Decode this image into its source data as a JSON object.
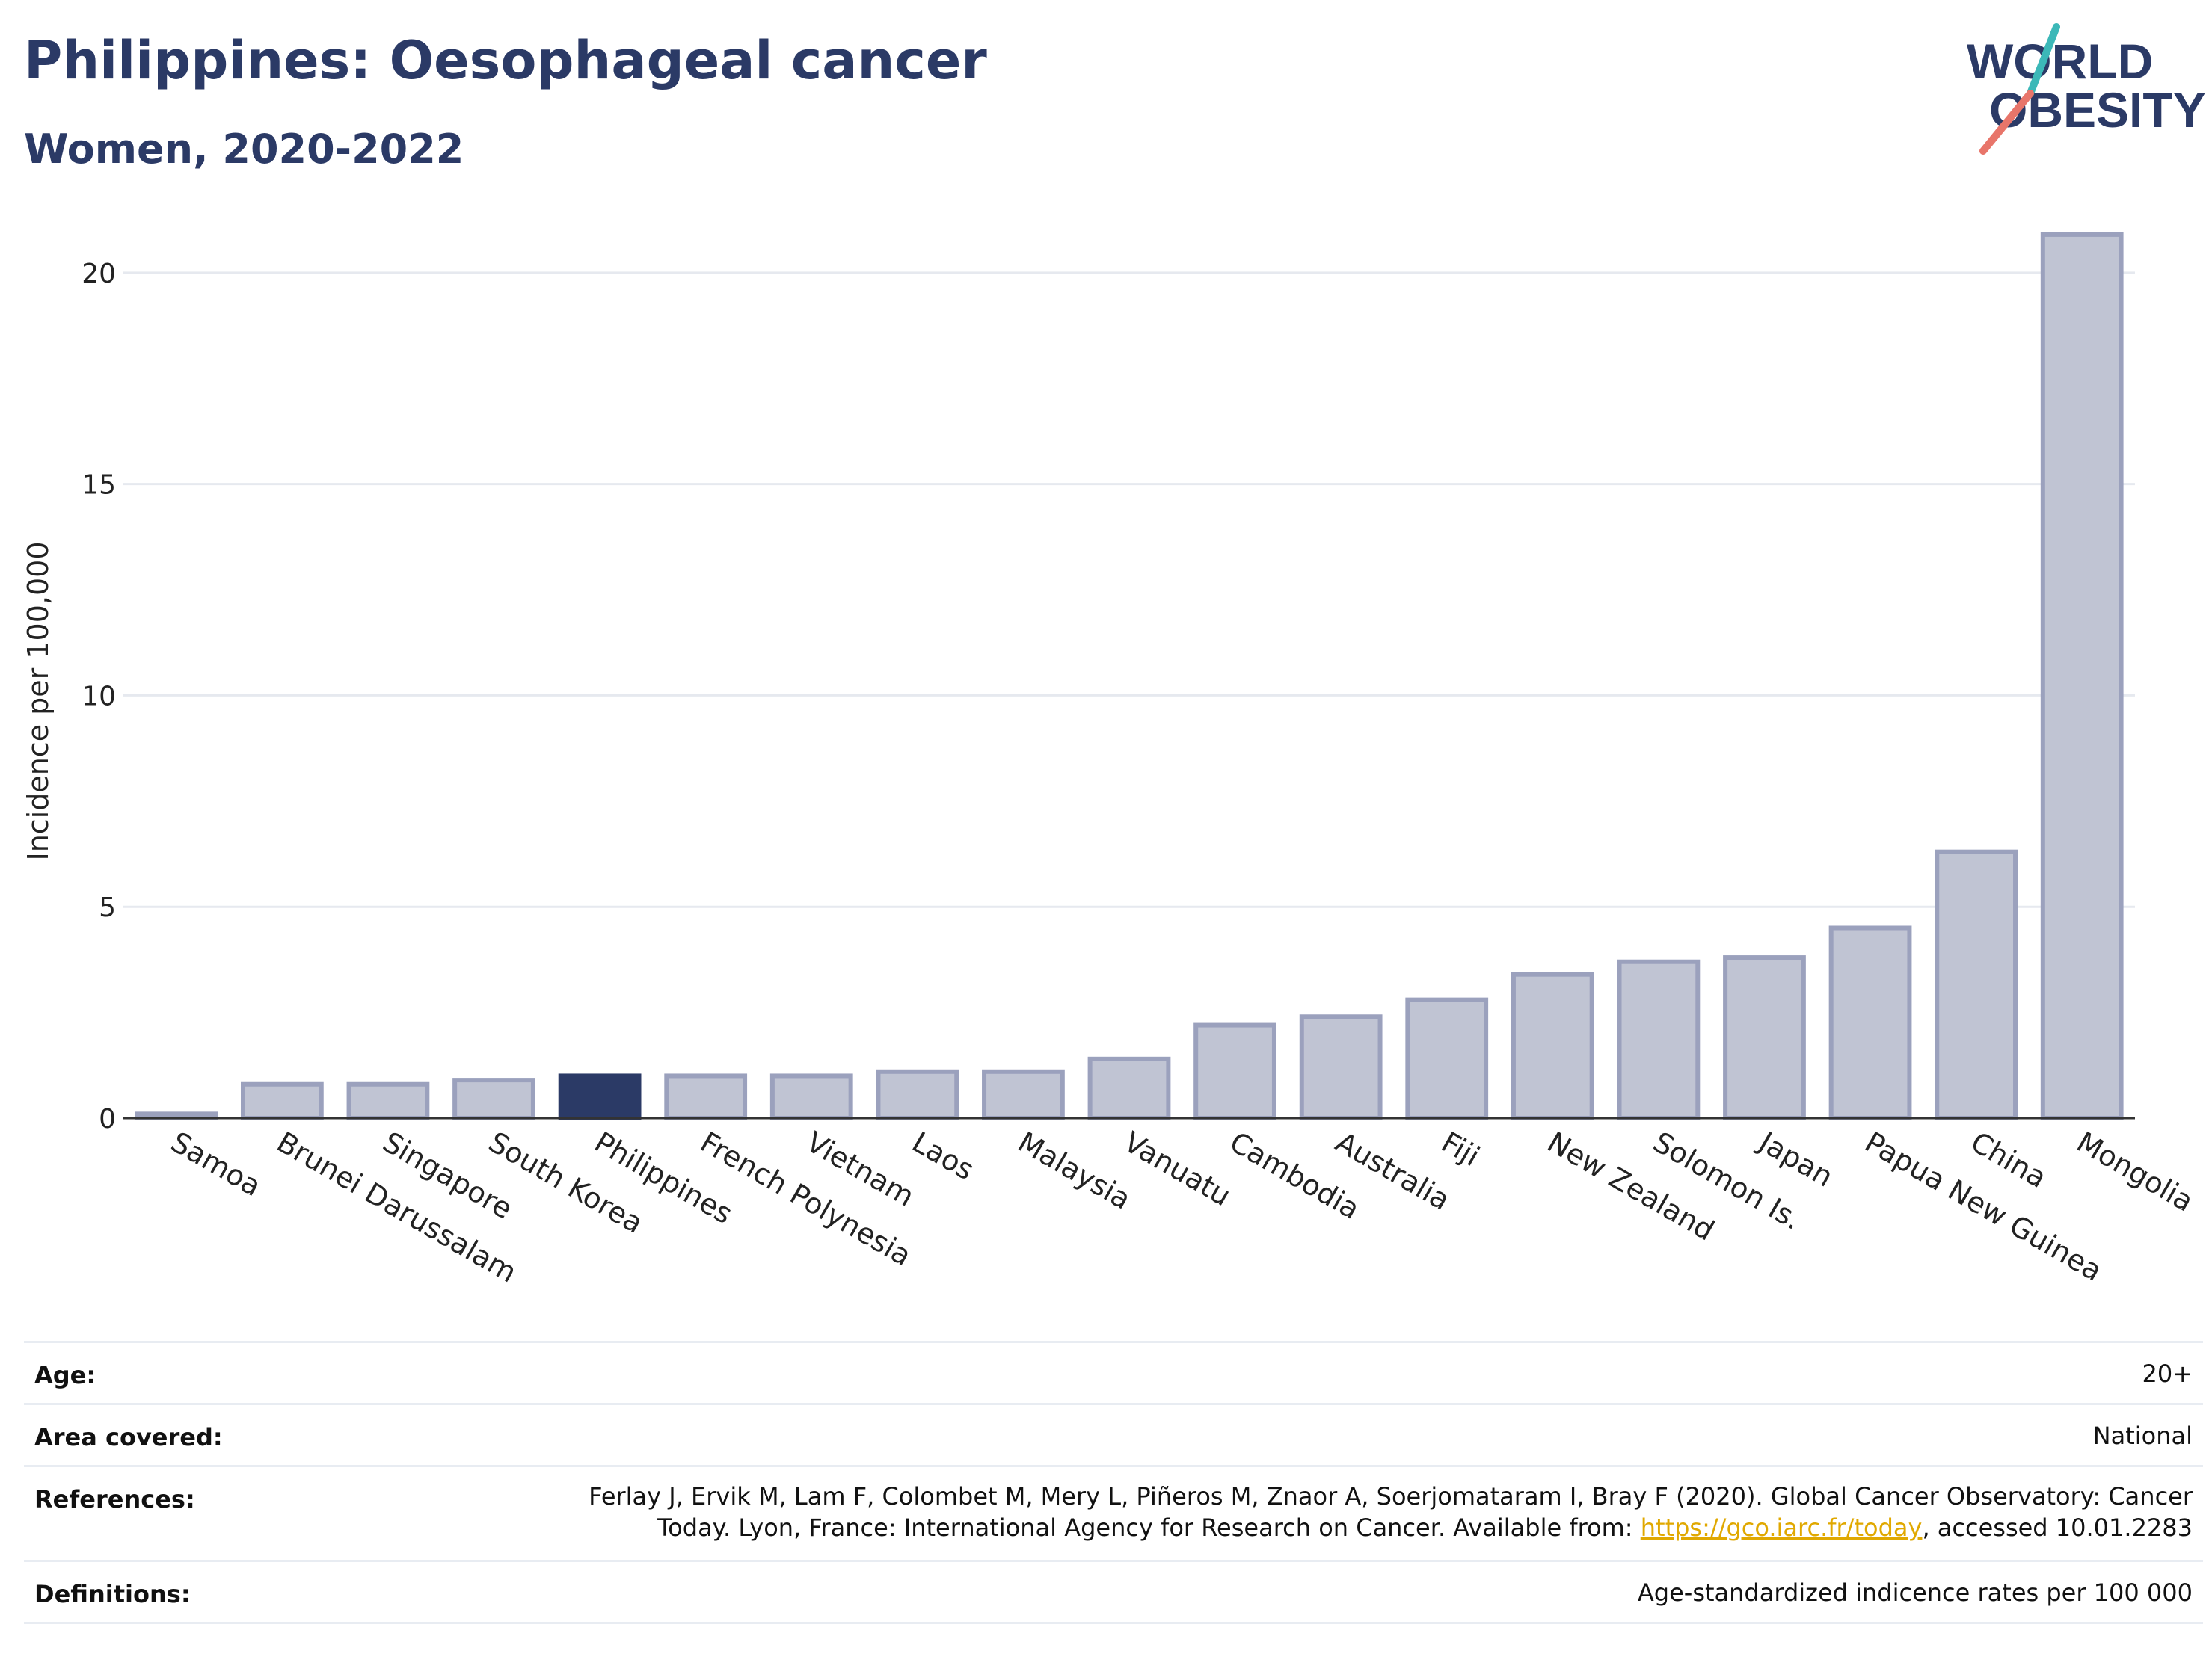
{
  "header": {
    "title": "Philippines: Oesophageal cancer",
    "subtitle": "Women, 2020-2022"
  },
  "logo": {
    "line1": "WORLD",
    "line2": "OBESITY"
  },
  "chart_data": {
    "type": "bar",
    "ylabel": "Incidence per 100,000",
    "xlabel": "",
    "ylim": [
      0,
      21.5
    ],
    "yticks": [
      0,
      5,
      10,
      15,
      20
    ],
    "grid": true,
    "legend": "none",
    "highlight": "Philippines",
    "categories": [
      "Samoa",
      "Brunei Darussalam",
      "Singapore",
      "South Korea",
      "Philippines",
      "French Polynesia",
      "Vietnam",
      "Laos",
      "Malaysia",
      "Vanuatu",
      "Cambodia",
      "Australia",
      "Fiji",
      "New Zealand",
      "Solomon Is.",
      "Japan",
      "Papua New Guinea",
      "China",
      "Mongolia"
    ],
    "values": [
      0.1,
      0.8,
      0.8,
      0.9,
      1.0,
      1.0,
      1.0,
      1.1,
      1.1,
      1.4,
      2.2,
      2.4,
      2.8,
      3.4,
      3.7,
      3.8,
      4.5,
      6.3,
      20.9
    ],
    "colors": {
      "bar": "#c0c4d3",
      "bar_border": "#9ba1bd",
      "highlight": "#2b3a66"
    }
  },
  "meta": {
    "age_label": "Age:",
    "age_value": "20+",
    "area_label": "Area covered:",
    "area_value": "National",
    "ref_label": "References:",
    "ref_line1": "Ferlay J, Ervik M, Lam F, Colombet M, Mery L, Piñeros M, Znaor A, Soerjomataram I, Bray F (2020). Global Cancer Observatory: Cancer",
    "ref_line2_pre": "Today. Lyon, France: International Agency for Research on Cancer. Available from: ",
    "ref_link": "https://gco.iarc.fr/today",
    "ref_line2_post": ", accessed 10.01.2283",
    "def_label": "Definitions:",
    "def_value": "Age-standardized indicence rates per 100 000"
  }
}
